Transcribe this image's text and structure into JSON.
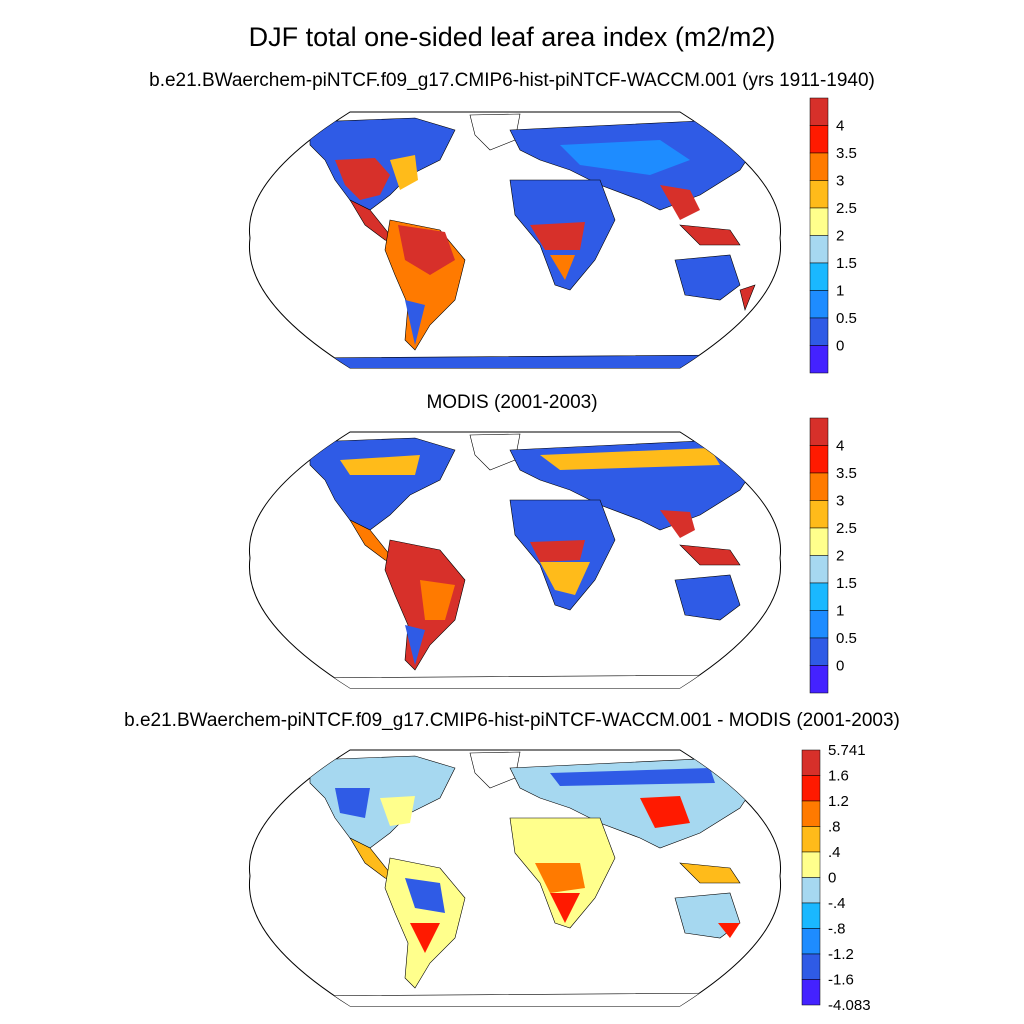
{
  "title": "DJF total one-sided leaf area index (m2/m2)",
  "panels": [
    {
      "title": "b.e21.BWaerchem-piNTCF.f09_g17.CMIP6-hist-piNTCF-WACCM.001 (yrs 1911-1940)",
      "projection": "Robinson (global)",
      "colorbar_labels": [
        "4",
        "3.5",
        "3",
        "2.5",
        "2",
        "1.5",
        "1",
        "0.5",
        "0"
      ],
      "colorbar_colors": [
        "#d7302a",
        "#ff1a00",
        "#ff7a00",
        "#ffbb1a",
        "#ffff8c",
        "#a6d8f0",
        "#1ab8ff",
        "#1e8cff",
        "#2f5be6",
        "#4422ff"
      ]
    },
    {
      "title": "MODIS (2001-2003)",
      "projection": "Robinson (global)",
      "colorbar_labels": [
        "4",
        "3.5",
        "3",
        "2.5",
        "2",
        "1.5",
        "1",
        "0.5",
        "0"
      ],
      "colorbar_colors": [
        "#d7302a",
        "#ff1a00",
        "#ff7a00",
        "#ffbb1a",
        "#ffff8c",
        "#a6d8f0",
        "#1ab8ff",
        "#1e8cff",
        "#2f5be6",
        "#4422ff"
      ]
    },
    {
      "title": "b.e21.BWaerchem-piNTCF.f09_g17.CMIP6-hist-piNTCF-WACCM.001 - MODIS (2001-2003)",
      "projection": "Robinson (global)",
      "colorbar_labels": [
        "5.741",
        "1.6",
        "1.2",
        ".8",
        ".4",
        "0",
        "-.4",
        "-.8",
        "-1.2",
        "-1.6",
        "-4.083"
      ],
      "colorbar_colors": [
        "#d7302a",
        "#ff1a00",
        "#ff7a00",
        "#ffbb1a",
        "#ffff8c",
        "#a6d8f0",
        "#1ab8ff",
        "#1e8cff",
        "#2f5be6",
        "#4422ff"
      ]
    }
  ]
}
